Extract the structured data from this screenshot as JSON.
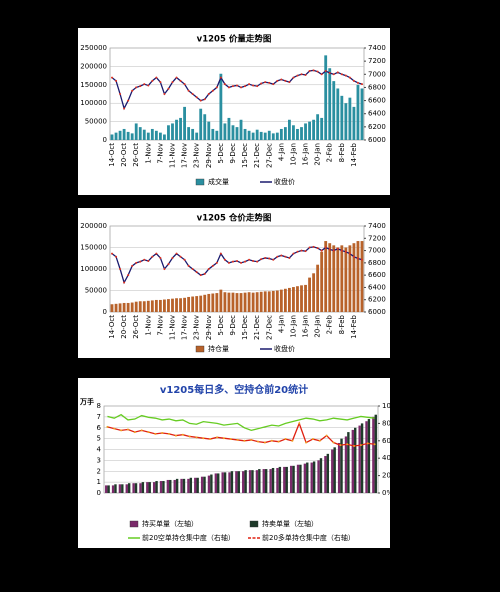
{
  "chart_data": [
    {
      "type": "combo",
      "title": "v1205 价量走势图",
      "categories": [
        "14-Oct",
        null,
        null,
        "20-Oct",
        null,
        null,
        "26-Oct",
        null,
        null,
        "1-Nov",
        null,
        null,
        "7-Nov",
        null,
        null,
        "11-Nov",
        null,
        null,
        "17-Nov",
        null,
        null,
        "23-Nov",
        null,
        null,
        "29-Nov",
        null,
        null,
        "5-Dec",
        null,
        null,
        "9-Dec",
        null,
        null,
        "15-Dec",
        null,
        null,
        "21-Dec",
        null,
        null,
        "27-Dec",
        null,
        null,
        "4-Jan",
        null,
        null,
        "10-Jan",
        null,
        null,
        "16-Jan",
        null,
        null,
        "20-Jan",
        null,
        null,
        "2-Feb",
        null,
        null,
        "8-Feb",
        null,
        null,
        "14-Feb",
        null,
        null
      ],
      "ylim": [
        0,
        250000
      ],
      "yticks": [
        0,
        50000,
        100000,
        150000,
        200000,
        250000
      ],
      "y2lim": [
        6000,
        7400
      ],
      "y2ticks": [
        6000,
        6200,
        6400,
        6600,
        6800,
        7000,
        7200,
        7400
      ],
      "series": [
        {
          "name": "成交量",
          "type": "bar",
          "color": "#2a8fa0",
          "values": [
            15000,
            20000,
            25000,
            30000,
            22000,
            18000,
            45000,
            35000,
            28000,
            20000,
            30000,
            25000,
            20000,
            15000,
            40000,
            45000,
            55000,
            60000,
            90000,
            35000,
            30000,
            20000,
            85000,
            70000,
            50000,
            30000,
            25000,
            180000,
            45000,
            60000,
            40000,
            35000,
            55000,
            30000,
            25000,
            20000,
            28000,
            22000,
            20000,
            25000,
            18000,
            20000,
            30000,
            35000,
            55000,
            40000,
            30000,
            35000,
            45000,
            50000,
            55000,
            70000,
            60000,
            230000,
            195000,
            160000,
            140000,
            120000,
            100000,
            115000,
            90000,
            150000,
            140000
          ]
        },
        {
          "name": "收盘价",
          "type": "line",
          "axis": "y2",
          "color": "#1a1a6e",
          "marker_color": "#e03020",
          "values": [
            6950,
            6900,
            6700,
            6480,
            6600,
            6750,
            6800,
            6820,
            6850,
            6830,
            6900,
            6950,
            6880,
            6700,
            6780,
            6880,
            6950,
            6900,
            6850,
            6750,
            6700,
            6650,
            6600,
            6620,
            6700,
            6750,
            6800,
            6950,
            6850,
            6800,
            6820,
            6830,
            6800,
            6820,
            6850,
            6830,
            6820,
            6860,
            6880,
            6870,
            6850,
            6900,
            6920,
            6900,
            6880,
            6950,
            6980,
            7000,
            6990,
            7050,
            7060,
            7040,
            7000,
            7050,
            7020,
            7000,
            7030,
            7000,
            6980,
            6950,
            6900,
            6870,
            6850
          ]
        }
      ]
    },
    {
      "type": "combo",
      "title": "v1205 仓价走势图",
      "categories": [
        "14-Oct",
        null,
        null,
        "20-Oct",
        null,
        null,
        "26-Oct",
        null,
        null,
        "1-Nov",
        null,
        null,
        "7-Nov",
        null,
        null,
        "11-Nov",
        null,
        null,
        "17-Nov",
        null,
        null,
        "23-Nov",
        null,
        null,
        "29-Nov",
        null,
        null,
        "5-Dec",
        null,
        null,
        "9-Dec",
        null,
        null,
        "15-Dec",
        null,
        null,
        "21-Dec",
        null,
        null,
        "27-Dec",
        null,
        null,
        "4-Jan",
        null,
        null,
        "10-Jan",
        null,
        null,
        "16-Jan",
        null,
        null,
        "20-Jan",
        null,
        null,
        "2-Feb",
        null,
        null,
        "8-Feb",
        null,
        null,
        "14-Feb",
        null,
        null
      ],
      "ylim": [
        0,
        200000
      ],
      "yticks": [
        0,
        50000,
        100000,
        150000,
        200000
      ],
      "y2lim": [
        6000,
        7400
      ],
      "y2ticks": [
        6000,
        6200,
        6400,
        6600,
        6800,
        7000,
        7200,
        7400
      ],
      "series": [
        {
          "name": "持仓量",
          "type": "bar",
          "color": "#b8622a",
          "values": [
            18000,
            19000,
            20000,
            21000,
            21000,
            22000,
            24000,
            25000,
            25000,
            26000,
            27000,
            28000,
            28000,
            29000,
            30000,
            31000,
            32000,
            32000,
            33000,
            35000,
            36000,
            37000,
            38000,
            40000,
            42000,
            43000,
            44000,
            52000,
            46000,
            45000,
            45000,
            44000,
            44000,
            45000,
            46000,
            45000,
            46000,
            47000,
            48000,
            48000,
            49000,
            50000,
            52000,
            54000,
            56000,
            58000,
            60000,
            62000,
            63000,
            80000,
            90000,
            110000,
            140000,
            165000,
            160000,
            155000,
            150000,
            155000,
            150000,
            155000,
            160000,
            165000,
            165000
          ]
        },
        {
          "name": "收盘价",
          "type": "line",
          "axis": "y2",
          "color": "#1a1a6e",
          "marker_color": "#e03020",
          "values": [
            6950,
            6900,
            6700,
            6480,
            6600,
            6750,
            6800,
            6820,
            6850,
            6830,
            6900,
            6950,
            6880,
            6700,
            6780,
            6880,
            6950,
            6900,
            6850,
            6750,
            6700,
            6650,
            6600,
            6620,
            6700,
            6750,
            6800,
            6950,
            6850,
            6800,
            6820,
            6830,
            6800,
            6820,
            6850,
            6830,
            6820,
            6860,
            6880,
            6870,
            6850,
            6900,
            6920,
            6900,
            6880,
            6950,
            6980,
            7000,
            6990,
            7050,
            7060,
            7040,
            7000,
            7050,
            7020,
            7000,
            7030,
            7000,
            6980,
            6950,
            6900,
            6870,
            6850
          ]
        }
      ]
    },
    {
      "type": "combo",
      "title": "v1205每日多、空持仓前20统计",
      "y_label": "万手",
      "ylim": [
        0,
        8
      ],
      "yticks": [
        0,
        1,
        2,
        3,
        4,
        5,
        6,
        7,
        8
      ],
      "y2lim": [
        0,
        100
      ],
      "y2ticks": [
        {
          "value": 0,
          "label": "0%"
        },
        {
          "value": 20,
          "label": "20%"
        },
        {
          "value": 40,
          "label": "40%"
        },
        {
          "value": 60,
          "label": "60%"
        },
        {
          "value": 80,
          "label": "80%"
        },
        {
          "value": 100,
          "label": "100%"
        }
      ],
      "series": [
        {
          "name": "持买单量（左轴）",
          "type": "bar",
          "color": "#7a2a6a",
          "values": [
            0.7,
            0.7,
            0.8,
            0.8,
            0.9,
            0.9,
            1.0,
            1.0,
            1.1,
            1.2,
            1.2,
            1.3,
            1.3,
            1.4,
            1.5,
            1.6,
            1.8,
            1.9,
            1.9,
            2.0,
            2.0,
            2.1,
            2.1,
            2.2,
            2.2,
            2.3,
            2.4,
            2.5,
            2.6,
            2.7,
            2.8,
            3.0,
            3.4,
            4.0,
            4.6,
            5.2,
            5.8,
            6.2,
            6.6,
            7.0
          ]
        },
        {
          "name": "持卖单量（左轴）",
          "type": "bar",
          "color": "#1f3a2a",
          "values": [
            0.7,
            0.8,
            0.8,
            0.9,
            0.9,
            1.0,
            1.0,
            1.1,
            1.1,
            1.2,
            1.3,
            1.3,
            1.4,
            1.4,
            1.5,
            1.7,
            1.8,
            1.9,
            2.0,
            2.0,
            2.1,
            2.1,
            2.2,
            2.2,
            2.3,
            2.4,
            2.4,
            2.5,
            2.6,
            2.8,
            2.9,
            3.2,
            3.6,
            4.2,
            5.0,
            5.6,
            6.0,
            6.4,
            6.8,
            7.2
          ]
        },
        {
          "name": "前20空单持仓集中度（右轴）",
          "type": "line",
          "axis": "y2",
          "color": "#66cc22",
          "values": [
            88,
            86,
            90,
            84,
            85,
            89,
            87,
            86,
            84,
            85,
            83,
            84,
            80,
            79,
            82,
            81,
            80,
            78,
            79,
            80,
            75,
            72,
            74,
            76,
            78,
            77,
            80,
            82,
            84,
            86,
            85,
            83,
            84,
            86,
            85,
            84,
            86,
            88,
            87,
            86
          ]
        },
        {
          "name": "前20多单持仓集中度（右轴）",
          "type": "line",
          "axis": "y2",
          "color": "#e02010",
          "marker_color": "#f0a020",
          "values": [
            76,
            74,
            72,
            73,
            70,
            72,
            70,
            68,
            69,
            68,
            66,
            67,
            65,
            64,
            63,
            62,
            64,
            63,
            62,
            61,
            60,
            61,
            59,
            58,
            60,
            59,
            62,
            60,
            80,
            58,
            62,
            60,
            66,
            58,
            55,
            56,
            54,
            55,
            57,
            56
          ]
        }
      ]
    }
  ]
}
